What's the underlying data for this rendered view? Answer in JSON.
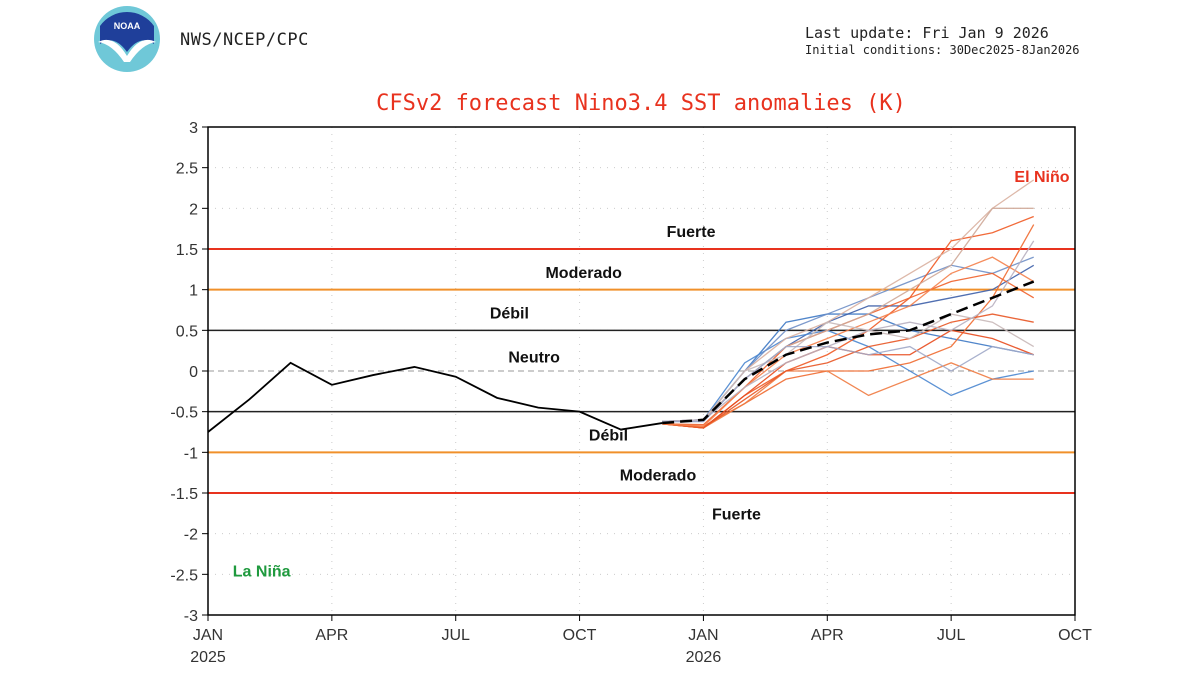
{
  "header": {
    "logo_text": "NOAA",
    "org": "NWS/NCEP/CPC",
    "last_update": "Last update: Fri Jan 9 2026",
    "initial_conditions": "Initial conditions: 30Dec2025-8Jan2026"
  },
  "colors": {
    "strong": "#e8321e",
    "moderate": "#f0902a",
    "weak": "#222222",
    "el_nino": "#e8321e",
    "la_nina": "#1f9a3e",
    "title": "#e8321e",
    "mean": "#000000"
  },
  "chart_data": {
    "type": "line",
    "title": "CFSv2 forecast Nino3.4 SST anomalies (K)",
    "ylim": [
      -3,
      3
    ],
    "yticks": [
      "3",
      "2.5",
      "2",
      "1.5",
      "1",
      "0.5",
      "0",
      "-0.5",
      "-1",
      "-1.5",
      "-2",
      "-2.5",
      "-3"
    ],
    "ytick_values": [
      3,
      2.5,
      2,
      1.5,
      1,
      0.5,
      0,
      -0.5,
      -1,
      -1.5,
      -2,
      -2.5,
      -3
    ],
    "x_months": [
      "Jan 2025",
      "Feb 2025",
      "Mar 2025",
      "Apr 2025",
      "May 2025",
      "Jun 2025",
      "Jul 2025",
      "Aug 2025",
      "Sep 2025",
      "Oct 2025",
      "Nov 2025",
      "Dec 2025",
      "Jan 2026",
      "Feb 2026",
      "Mar 2026",
      "Apr 2026",
      "May 2026",
      "Jun 2026",
      "Jul 2026",
      "Aug 2026",
      "Sep 2026",
      "Oct 2026"
    ],
    "xticks": [
      {
        "month_index": 0,
        "label": "JAN",
        "year": "2025"
      },
      {
        "month_index": 3,
        "label": "APR",
        "year": ""
      },
      {
        "month_index": 6,
        "label": "JUL",
        "year": ""
      },
      {
        "month_index": 9,
        "label": "OCT",
        "year": ""
      },
      {
        "month_index": 12,
        "label": "JAN",
        "year": "2026"
      },
      {
        "month_index": 15,
        "label": "APR",
        "year": ""
      },
      {
        "month_index": 18,
        "label": "JUL",
        "year": ""
      },
      {
        "month_index": 21,
        "label": "OCT",
        "year": ""
      }
    ],
    "grid": "dotted",
    "thresholds": [
      {
        "value": 1.5,
        "kind": "strong"
      },
      {
        "value": 1.0,
        "kind": "moderate"
      },
      {
        "value": 0.5,
        "kind": "weak"
      },
      {
        "value": -0.5,
        "kind": "weak"
      },
      {
        "value": -1.0,
        "kind": "moderate"
      },
      {
        "value": -1.5,
        "kind": "strong"
      }
    ],
    "annotations": [
      {
        "text": "Fuerte",
        "month": 11.7,
        "value": 1.72,
        "color": "#111"
      },
      {
        "text": "Moderado",
        "month": 9.1,
        "value": 1.22,
        "color": "#111"
      },
      {
        "text": "Débil",
        "month": 7.3,
        "value": 0.72,
        "color": "#111"
      },
      {
        "text": "Neutro",
        "month": 7.9,
        "value": 0.18,
        "color": "#111"
      },
      {
        "text": "Débil",
        "month": 9.7,
        "value": -0.78,
        "color": "#111"
      },
      {
        "text": "Moderado",
        "month": 10.9,
        "value": -1.27,
        "color": "#111"
      },
      {
        "text": "Fuerte",
        "month": 12.8,
        "value": -1.75,
        "color": "#111"
      },
      {
        "text": "El Niño",
        "month": 20.2,
        "value": 2.4,
        "color": "#e8321e"
      },
      {
        "text": "La Niña",
        "month": 1.3,
        "value": -2.45,
        "color": "#1f9a3e"
      }
    ],
    "observed": {
      "start_month": 0,
      "values": [
        -0.75,
        -0.35,
        0.1,
        -0.17,
        -0.05,
        0.05,
        -0.07,
        -0.33,
        -0.45,
        -0.5,
        -0.72,
        -0.64
      ]
    },
    "ensemble_mean": {
      "start_month": 11,
      "values": [
        -0.64,
        -0.6,
        -0.1,
        0.2,
        0.35,
        0.45,
        0.5,
        0.7,
        0.9,
        1.1
      ]
    },
    "members": [
      {
        "color": "#3d78c4",
        "values": [
          -0.62,
          -0.6,
          0.0,
          0.6,
          0.7,
          0.7,
          0.5,
          0.4,
          0.3,
          0.2
        ]
      },
      {
        "color": "#3d5fa8",
        "values": [
          -0.62,
          -0.62,
          -0.1,
          0.3,
          0.6,
          0.8,
          0.8,
          0.9,
          1.0,
          1.3
        ]
      },
      {
        "color": "#4a86cf",
        "values": [
          -0.62,
          -0.6,
          0.1,
          0.4,
          0.5,
          0.3,
          0.0,
          -0.3,
          -0.1,
          0.0
        ]
      },
      {
        "color": "#6f8fc6",
        "values": [
          -0.62,
          -0.6,
          0.0,
          0.5,
          0.7,
          0.9,
          1.1,
          1.3,
          1.2,
          1.4
        ]
      },
      {
        "color": "#ef5a24",
        "values": [
          -0.65,
          -0.7,
          -0.3,
          0.0,
          0.2,
          0.5,
          0.9,
          1.6,
          1.7,
          1.9
        ]
      },
      {
        "color": "#f06a30",
        "values": [
          -0.65,
          -0.68,
          -0.4,
          -0.1,
          0.0,
          0.0,
          0.1,
          0.3,
          0.9,
          1.8
        ]
      },
      {
        "color": "#e84a1c",
        "values": [
          -0.65,
          -0.7,
          -0.3,
          0.1,
          0.3,
          0.2,
          0.2,
          0.5,
          0.4,
          0.2
        ]
      },
      {
        "color": "#f07a40",
        "values": [
          -0.65,
          -0.7,
          -0.4,
          0.0,
          0.0,
          -0.3,
          -0.1,
          0.1,
          -0.1,
          -0.1
        ]
      },
      {
        "color": "#f0602a",
        "values": [
          -0.65,
          -0.66,
          -0.2,
          0.3,
          0.5,
          0.7,
          0.9,
          1.1,
          1.2,
          0.9
        ]
      },
      {
        "color": "#e85524",
        "values": [
          -0.65,
          -0.7,
          -0.35,
          0.0,
          0.1,
          0.3,
          0.4,
          0.6,
          0.7,
          0.6
        ]
      },
      {
        "color": "#f4804a",
        "values": [
          -0.65,
          -0.68,
          -0.2,
          0.2,
          0.4,
          0.6,
          0.8,
          1.2,
          1.4,
          1.1
        ]
      },
      {
        "color": "#d9b0a0",
        "values": [
          -0.62,
          -0.6,
          0.0,
          0.4,
          0.6,
          0.9,
          1.2,
          1.5,
          2.0,
          2.35
        ]
      },
      {
        "color": "#cfa898",
        "values": [
          -0.62,
          -0.6,
          -0.1,
          0.3,
          0.5,
          0.7,
          1.0,
          1.3,
          2.0,
          2.0
        ]
      },
      {
        "color": "#c8b8b8",
        "values": [
          -0.62,
          -0.6,
          0.0,
          0.2,
          0.6,
          0.5,
          0.4,
          0.7,
          0.6,
          0.3
        ]
      },
      {
        "color": "#b8b0c0",
        "values": [
          -0.62,
          -0.6,
          -0.2,
          0.1,
          0.3,
          0.5,
          0.6,
          0.5,
          0.8,
          1.6
        ]
      },
      {
        "color": "#a0a8c8",
        "values": [
          -0.62,
          -0.62,
          -0.1,
          0.3,
          0.3,
          0.2,
          0.3,
          0.0,
          0.3,
          0.2
        ]
      }
    ],
    "members_start_month": 11
  }
}
